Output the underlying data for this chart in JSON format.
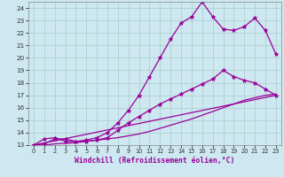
{
  "bg_color": "#cde8f0",
  "line_color": "#990099",
  "grid_color": "#aacccc",
  "xlabel": "Windchill (Refroidissement éolien,°C)",
  "xlim": [
    -0.5,
    23.5
  ],
  "ylim": [
    13,
    24.5
  ],
  "xticks": [
    0,
    1,
    2,
    3,
    4,
    5,
    6,
    7,
    8,
    9,
    10,
    11,
    12,
    13,
    14,
    15,
    16,
    17,
    18,
    19,
    20,
    21,
    22,
    23
  ],
  "yticks": [
    13,
    14,
    15,
    16,
    17,
    18,
    19,
    20,
    21,
    22,
    23,
    24
  ],
  "line1_x": [
    0,
    1,
    2,
    3,
    4,
    5,
    6,
    7,
    8,
    9,
    10,
    11,
    12,
    13,
    14,
    15,
    16,
    17,
    18,
    19,
    20,
    21,
    22,
    23
  ],
  "line1_y": [
    13.0,
    13.5,
    13.6,
    13.3,
    13.3,
    13.4,
    13.6,
    14.0,
    14.8,
    15.8,
    17.0,
    18.5,
    20.0,
    21.5,
    22.8,
    23.3,
    24.5,
    23.3,
    22.3,
    22.2,
    22.5,
    23.2,
    22.2,
    20.3
  ],
  "line2_x": [
    0,
    1,
    2,
    3,
    4,
    5,
    6,
    7,
    8,
    9,
    10,
    11,
    12,
    13,
    14,
    15,
    16,
    17,
    18,
    19,
    20,
    21,
    22,
    23
  ],
  "line2_y": [
    13.0,
    13.1,
    13.5,
    13.5,
    13.3,
    13.3,
    13.4,
    13.6,
    14.2,
    14.8,
    15.3,
    15.8,
    16.3,
    16.7,
    17.1,
    17.5,
    17.9,
    18.3,
    19.0,
    18.5,
    18.2,
    18.0,
    17.5,
    17.0
  ],
  "line3_x": [
    0,
    1,
    2,
    3,
    4,
    5,
    6,
    7,
    8,
    9,
    10,
    11,
    12,
    13,
    14,
    15,
    16,
    17,
    18,
    19,
    20,
    21,
    22,
    23
  ],
  "line3_y": [
    13.0,
    13.0,
    13.1,
    13.15,
    13.2,
    13.3,
    13.4,
    13.5,
    13.6,
    13.75,
    13.9,
    14.1,
    14.35,
    14.6,
    14.85,
    15.1,
    15.4,
    15.7,
    16.0,
    16.3,
    16.6,
    16.8,
    17.0,
    17.1
  ],
  "line4_x": [
    0,
    23
  ],
  "line4_y": [
    13.0,
    17.0
  ]
}
